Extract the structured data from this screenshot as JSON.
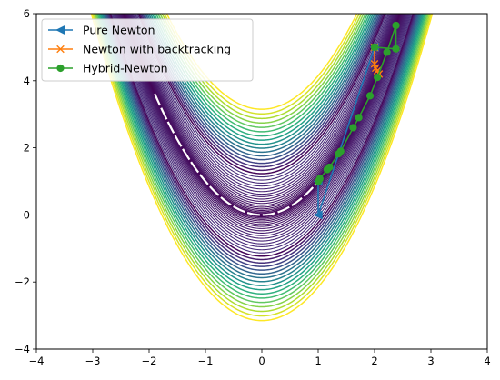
{
  "chart_data": {
    "type": "line",
    "title": "",
    "xlabel": "",
    "ylabel": "",
    "xlim": [
      -4,
      4
    ],
    "ylim": [
      -4,
      6
    ],
    "xticks": [
      "−4",
      "−3",
      "−2",
      "−1",
      "0",
      "1",
      "2",
      "3",
      "4"
    ],
    "yticks": [
      "−4",
      "−2",
      "0",
      "2",
      "4",
      "6"
    ],
    "legend_position": "upper-left",
    "background": {
      "kind": "contour",
      "function": "x^4 - 2*x^2*y + y^2 + 3*x^2 + ... (Rosenbrock-like valley, y ≈ x^2)",
      "colormap": "viridis",
      "vertex_x": 0,
      "vertex_y_outer": -3.15,
      "vertex_y_outer_top": 3.15
    },
    "series": [
      {
        "name": "Pure Newton",
        "color": "#1f77b4",
        "marker": "triangle-left",
        "points": [
          [
            2,
            5
          ],
          [
            1,
            0
          ],
          [
            1,
            1
          ]
        ]
      },
      {
        "name": "Newton with backtracking",
        "color": "#ff7f0e",
        "marker": "x",
        "points": [
          [
            2,
            5
          ],
          [
            2,
            4.5
          ],
          [
            2.02,
            4.38
          ],
          [
            2.05,
            4.3
          ],
          [
            2.08,
            4.2
          ]
        ]
      },
      {
        "name": "Hybrid-Newton",
        "color": "#2ca02c",
        "marker": "circle",
        "points": [
          [
            2,
            5
          ],
          [
            2.38,
            4.95
          ],
          [
            2.38,
            5.65
          ],
          [
            2.22,
            4.85
          ],
          [
            2.05,
            4.1
          ],
          [
            1.92,
            3.55
          ],
          [
            1.72,
            2.9
          ],
          [
            1.62,
            2.6
          ],
          [
            1.4,
            1.9
          ],
          [
            1.36,
            1.82
          ],
          [
            1.2,
            1.42
          ],
          [
            1.16,
            1.35
          ],
          [
            1.03,
            1.08
          ],
          [
            1,
            1
          ]
        ]
      }
    ]
  }
}
